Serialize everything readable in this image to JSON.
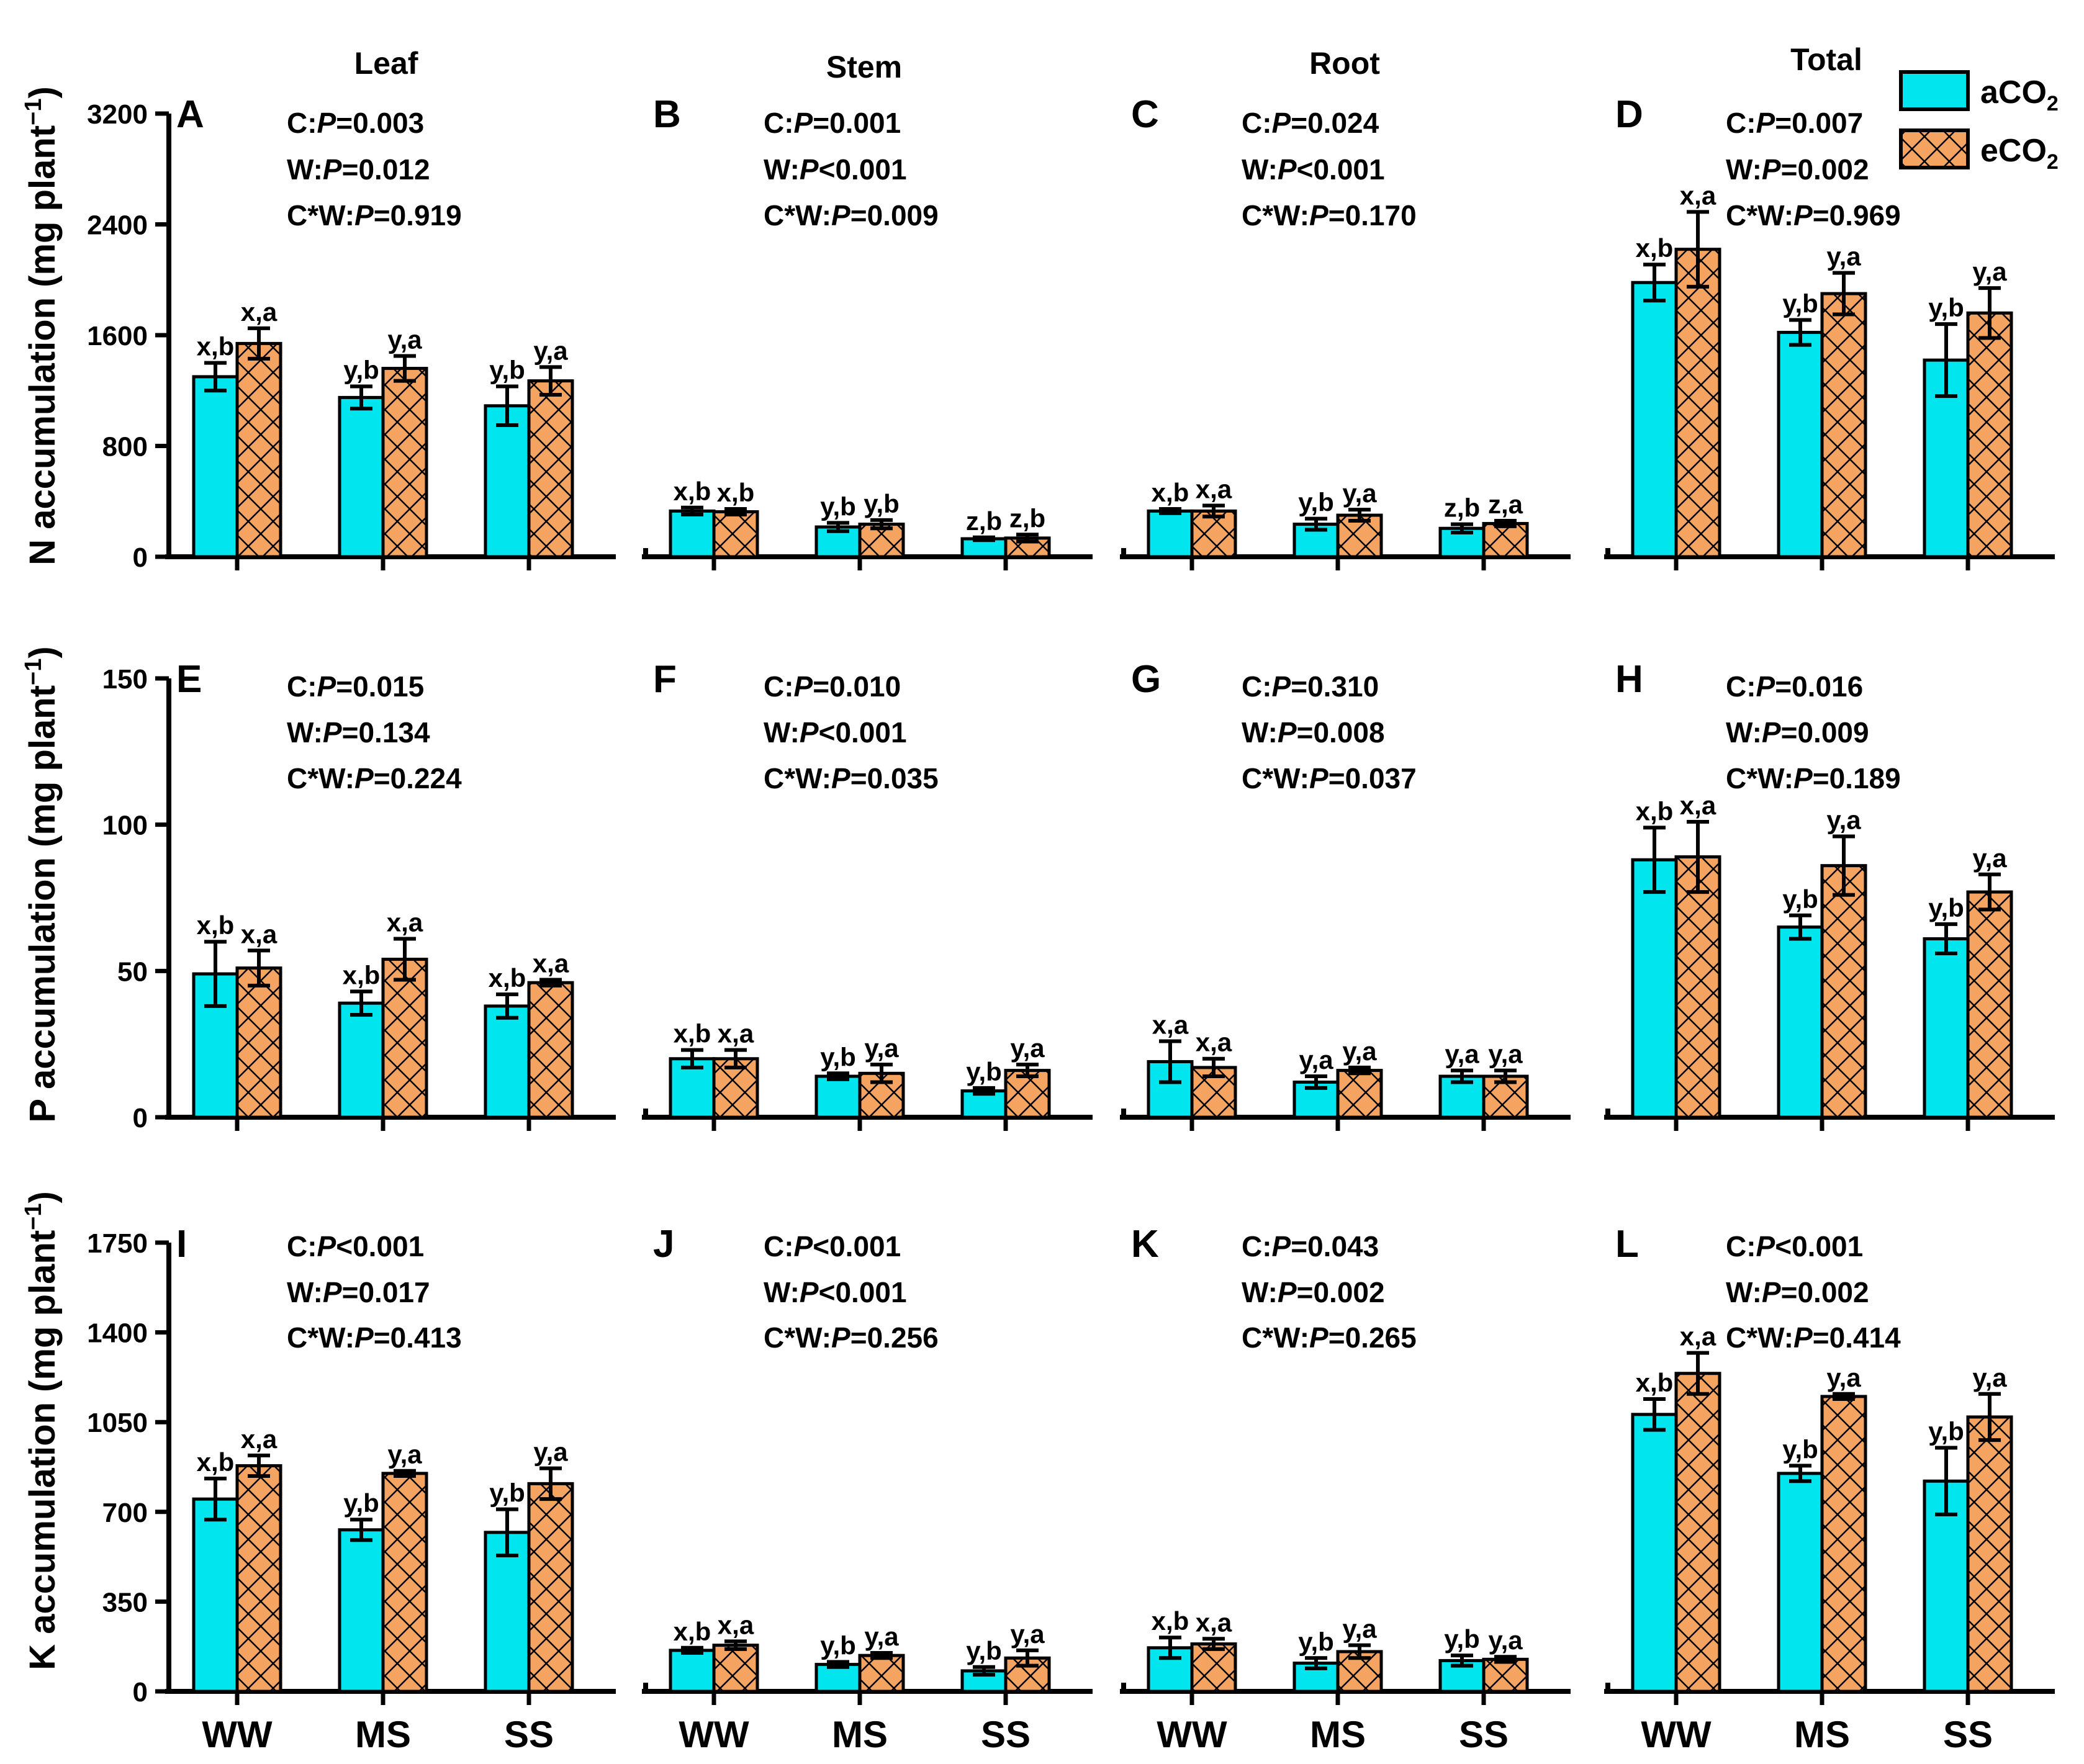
{
  "colors": {
    "aCO2": "#00e5ee",
    "eCO2": "#f4a460",
    "axis": "#000000"
  },
  "legend": {
    "aCO2": {
      "base": "aCO",
      "sub": "2"
    },
    "eCO2": {
      "base": "eCO",
      "sub": "2"
    }
  },
  "column_titles": [
    "Leaf",
    "Stem",
    "Root",
    "Total"
  ],
  "row_ylabels": [
    {
      "text": "N accumulation (mg plant",
      "sup": "−1",
      "close": ")"
    },
    {
      "text": "P accumulation  (mg plant",
      "sup": "−1",
      "close": ")"
    },
    {
      "text": "K accumulation (mg plant",
      "sup": "−1",
      "close": ")"
    }
  ],
  "chart_data": [
    {
      "type": "bar",
      "panel": "A",
      "categories": [
        "WW",
        "MS",
        "SS"
      ],
      "ylim": [
        0,
        3200
      ],
      "yticks": [
        "0",
        "800",
        "1600",
        "2400",
        "3200"
      ],
      "series": [
        {
          "name": "aCO2",
          "values": [
            1300,
            1150,
            1090
          ],
          "err": [
            100,
            80,
            140
          ],
          "labels": [
            "x,b",
            "y,b",
            "y,b"
          ]
        },
        {
          "name": "eCO2",
          "values": [
            1540,
            1360,
            1270
          ],
          "err": [
            110,
            90,
            100
          ],
          "labels": [
            "x,a",
            "y,a",
            "y,a"
          ]
        }
      ],
      "stats": [
        {
          "pre": "C:",
          "p": "P",
          "post": "=0.003"
        },
        {
          "pre": "W:",
          "p": "P",
          "post": "=0.012"
        },
        {
          "pre": "C*W:",
          "p": "P",
          "post": "=0.919"
        }
      ]
    },
    {
      "type": "bar",
      "panel": "B",
      "categories": [
        "WW",
        "MS",
        "SS"
      ],
      "ylim": [
        0,
        3200
      ],
      "series": [
        {
          "name": "aCO2",
          "values": [
            330,
            215,
            130
          ],
          "err": [
            25,
            30,
            10
          ],
          "labels": [
            "x,b",
            "y,b",
            "z,b"
          ]
        },
        {
          "name": "eCO2",
          "values": [
            325,
            235,
            135
          ],
          "err": [
            20,
            30,
            25
          ],
          "labels": [
            "x,b",
            "y,b",
            "z,b"
          ]
        }
      ],
      "stats": [
        {
          "pre": "C:",
          "p": "P",
          "post": "=0.001"
        },
        {
          "pre": "W:",
          "p": "P",
          "post": "<0.001"
        },
        {
          "pre": "C*W:",
          "p": "P",
          "post": "=0.009"
        }
      ]
    },
    {
      "type": "bar",
      "panel": "C",
      "categories": [
        "WW",
        "MS",
        "SS"
      ],
      "ylim": [
        0,
        3200
      ],
      "series": [
        {
          "name": "aCO2",
          "values": [
            330,
            235,
            205
          ],
          "err": [
            15,
            40,
            30
          ],
          "labels": [
            "x,b",
            "y,b",
            "z,b"
          ]
        },
        {
          "name": "eCO2",
          "values": [
            330,
            300,
            240
          ],
          "err": [
            40,
            40,
            20
          ],
          "labels": [
            "x,a",
            "y,a",
            "z,a"
          ]
        }
      ],
      "stats": [
        {
          "pre": "C:",
          "p": "P",
          "post": "=0.024"
        },
        {
          "pre": "W:",
          "p": "P",
          "post": "<0.001"
        },
        {
          "pre": "C*W:",
          "p": "P",
          "post": "=0.170"
        }
      ]
    },
    {
      "type": "bar",
      "panel": "D",
      "categories": [
        "WW",
        "MS",
        "SS"
      ],
      "ylim": [
        0,
        3200
      ],
      "series": [
        {
          "name": "aCO2",
          "values": [
            1980,
            1620,
            1420
          ],
          "err": [
            130,
            90,
            260
          ],
          "labels": [
            "x,b",
            "y,b",
            "y,b"
          ]
        },
        {
          "name": "eCO2",
          "values": [
            2220,
            1900,
            1760
          ],
          "err": [
            270,
            150,
            180
          ],
          "labels": [
            "x,a",
            "y,a",
            "y,a"
          ]
        }
      ],
      "stats": [
        {
          "pre": "C:",
          "p": "P",
          "post": "=0.007"
        },
        {
          "pre": "W:",
          "p": "P",
          "post": "=0.002"
        },
        {
          "pre": "C*W:",
          "p": "P",
          "post": "=0.969"
        }
      ]
    },
    {
      "type": "bar",
      "panel": "E",
      "categories": [
        "WW",
        "MS",
        "SS"
      ],
      "ylim": [
        0,
        150
      ],
      "yticks": [
        "0",
        "50",
        "100",
        "150"
      ],
      "series": [
        {
          "name": "aCO2",
          "values": [
            49,
            39,
            38
          ],
          "err": [
            11,
            4,
            4
          ],
          "labels": [
            "x,b",
            "x,b",
            "x,b"
          ]
        },
        {
          "name": "eCO2",
          "values": [
            51,
            54,
            46
          ],
          "err": [
            6,
            7,
            1
          ],
          "labels": [
            "x,a",
            "x,a",
            "x,a"
          ]
        }
      ],
      "stats": [
        {
          "pre": "C:",
          "p": "P",
          "post": "=0.015"
        },
        {
          "pre": "W:",
          "p": "P",
          "post": "=0.134"
        },
        {
          "pre": "C*W:",
          "p": "P",
          "post": "=0.224"
        }
      ]
    },
    {
      "type": "bar",
      "panel": "F",
      "categories": [
        "WW",
        "MS",
        "SS"
      ],
      "ylim": [
        0,
        150
      ],
      "series": [
        {
          "name": "aCO2",
          "values": [
            20,
            14,
            9
          ],
          "err": [
            3,
            1,
            1
          ],
          "labels": [
            "x,b",
            "y,b",
            "y,b"
          ]
        },
        {
          "name": "eCO2",
          "values": [
            20,
            15,
            16
          ],
          "err": [
            3,
            3,
            2
          ],
          "labels": [
            "x,a",
            "y,a",
            "y,a"
          ]
        }
      ],
      "stats": [
        {
          "pre": "C:",
          "p": "P",
          "post": "=0.010"
        },
        {
          "pre": "W:",
          "p": "P",
          "post": "<0.001"
        },
        {
          "pre": "C*W:",
          "p": "P",
          "post": "=0.035"
        }
      ]
    },
    {
      "type": "bar",
      "panel": "G",
      "categories": [
        "WW",
        "MS",
        "SS"
      ],
      "ylim": [
        0,
        150
      ],
      "series": [
        {
          "name": "aCO2",
          "values": [
            19,
            12,
            14
          ],
          "err": [
            7,
            2,
            2
          ],
          "labels": [
            "x,a",
            "y,a",
            "y,a"
          ]
        },
        {
          "name": "eCO2",
          "values": [
            17,
            16,
            14
          ],
          "err": [
            3,
            1,
            2
          ],
          "labels": [
            "x,a",
            "y,a",
            "y,a"
          ]
        }
      ],
      "stats": [
        {
          "pre": "C:",
          "p": "P",
          "post": "=0.310"
        },
        {
          "pre": "W:",
          "p": "P",
          "post": "=0.008"
        },
        {
          "pre": "C*W:",
          "p": "P",
          "post": "=0.037"
        }
      ]
    },
    {
      "type": "bar",
      "panel": "H",
      "categories": [
        "WW",
        "MS",
        "SS"
      ],
      "ylim": [
        0,
        150
      ],
      "series": [
        {
          "name": "aCO2",
          "values": [
            88,
            65,
            61
          ],
          "err": [
            11,
            4,
            5
          ],
          "labels": [
            "x,b",
            "y,b",
            "y,b"
          ]
        },
        {
          "name": "eCO2",
          "values": [
            89,
            86,
            77
          ],
          "err": [
            12,
            10,
            6
          ],
          "labels": [
            "x,a",
            "y,a",
            "y,a"
          ]
        }
      ],
      "stats": [
        {
          "pre": "C:",
          "p": "P",
          "post": "=0.016"
        },
        {
          "pre": "W:",
          "p": "P",
          "post": "=0.009"
        },
        {
          "pre": "C*W:",
          "p": "P",
          "post": "=0.189"
        }
      ]
    },
    {
      "type": "bar",
      "panel": "I",
      "categories": [
        "WW",
        "MS",
        "SS"
      ],
      "ylim": [
        0,
        1750
      ],
      "yticks": [
        "0",
        "350",
        "700",
        "1050",
        "1400",
        "1750"
      ],
      "series": [
        {
          "name": "aCO2",
          "values": [
            750,
            630,
            620
          ],
          "err": [
            80,
            40,
            90
          ],
          "labels": [
            "x,b",
            "y,b",
            "y,b"
          ]
        },
        {
          "name": "eCO2",
          "values": [
            880,
            850,
            810
          ],
          "err": [
            40,
            10,
            60
          ],
          "labels": [
            "x,a",
            "y,a",
            "y,a"
          ]
        }
      ],
      "stats": [
        {
          "pre": "C:",
          "p": "P",
          "post": "<0.001"
        },
        {
          "pre": "W:",
          "p": "P",
          "post": "=0.017"
        },
        {
          "pre": "C*W:",
          "p": "P",
          "post": "=0.413"
        }
      ]
    },
    {
      "type": "bar",
      "panel": "J",
      "categories": [
        "WW",
        "MS",
        "SS"
      ],
      "ylim": [
        0,
        1750
      ],
      "series": [
        {
          "name": "aCO2",
          "values": [
            160,
            105,
            80
          ],
          "err": [
            10,
            10,
            15
          ],
          "labels": [
            "x,b",
            "y,b",
            "y,b"
          ]
        },
        {
          "name": "eCO2",
          "values": [
            180,
            140,
            130
          ],
          "err": [
            15,
            10,
            30
          ],
          "labels": [
            "x,a",
            "y,a",
            "y,a"
          ]
        }
      ],
      "stats": [
        {
          "pre": "C:",
          "p": "P",
          "post": "<0.001"
        },
        {
          "pre": "W:",
          "p": "P",
          "post": "<0.001"
        },
        {
          "pre": "C*W:",
          "p": "P",
          "post": "=0.256"
        }
      ]
    },
    {
      "type": "bar",
      "panel": "K",
      "categories": [
        "WW",
        "MS",
        "SS"
      ],
      "ylim": [
        0,
        1750
      ],
      "series": [
        {
          "name": "aCO2",
          "values": [
            170,
            110,
            120
          ],
          "err": [
            40,
            20,
            20
          ],
          "labels": [
            "x,b",
            "y,b",
            "y,b"
          ]
        },
        {
          "name": "eCO2",
          "values": [
            185,
            155,
            125
          ],
          "err": [
            20,
            25,
            10
          ],
          "labels": [
            "x,a",
            "y,a",
            "y,a"
          ]
        }
      ],
      "stats": [
        {
          "pre": "C:",
          "p": "P",
          "post": "=0.043"
        },
        {
          "pre": "W:",
          "p": "P",
          "post": "=0.002"
        },
        {
          "pre": "C*W:",
          "p": "P",
          "post": "=0.265"
        }
      ]
    },
    {
      "type": "bar",
      "panel": "L",
      "categories": [
        "WW",
        "MS",
        "SS"
      ],
      "ylim": [
        0,
        1750
      ],
      "series": [
        {
          "name": "aCO2",
          "values": [
            1080,
            850,
            820
          ],
          "err": [
            60,
            30,
            130
          ],
          "labels": [
            "x,b",
            "y,b",
            "y,b"
          ]
        },
        {
          "name": "eCO2",
          "values": [
            1240,
            1150,
            1070
          ],
          "err": [
            80,
            10,
            90
          ],
          "labels": [
            "x,a",
            "y,a",
            "y,a"
          ]
        }
      ],
      "stats": [
        {
          "pre": "C:",
          "p": "P",
          "post": "<0.001"
        },
        {
          "pre": "W:",
          "p": "P",
          "post": "=0.002"
        },
        {
          "pre": "C*W:",
          "p": "P",
          "post": "=0.414"
        }
      ]
    }
  ]
}
